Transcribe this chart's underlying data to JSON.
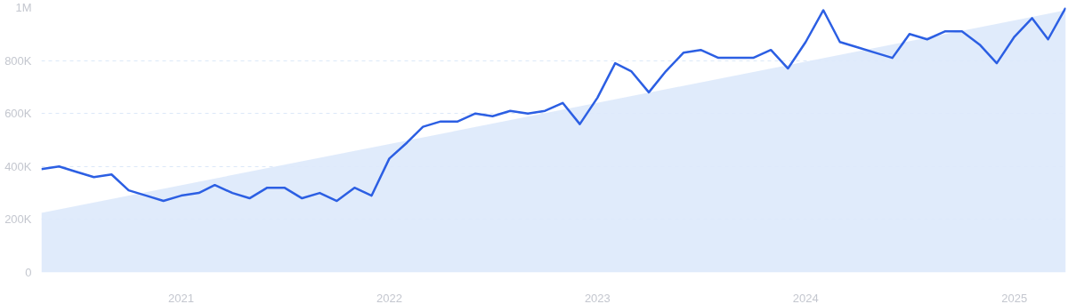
{
  "chart_data": {
    "type": "line",
    "x": [
      "2020-05",
      "2020-06",
      "2020-07",
      "2020-08",
      "2020-09",
      "2020-10",
      "2020-11",
      "2020-12",
      "2021-01",
      "2021-02",
      "2021-03",
      "2021-04",
      "2021-05",
      "2021-06",
      "2021-07",
      "2021-08",
      "2021-09",
      "2021-10",
      "2021-11",
      "2021-12",
      "2022-01",
      "2022-02",
      "2022-03",
      "2022-04",
      "2022-05",
      "2022-06",
      "2022-07",
      "2022-08",
      "2022-09",
      "2022-10",
      "2022-11",
      "2022-12",
      "2023-01",
      "2023-02",
      "2023-03",
      "2023-04",
      "2023-05",
      "2023-06",
      "2023-07",
      "2023-08",
      "2023-09",
      "2023-10",
      "2023-11",
      "2023-12",
      "2024-01",
      "2024-02",
      "2024-03",
      "2024-04",
      "2024-05",
      "2024-06",
      "2024-07",
      "2024-08",
      "2024-09",
      "2024-10",
      "2024-11",
      "2024-12",
      "2025-01",
      "2025-02",
      "2025-03",
      "2025-04"
    ],
    "series": [
      {
        "type": "area",
        "color": "#dde9fb",
        "x": [
          "2020-05",
          "2025-04"
        ],
        "values": [
          225000,
          990000
        ]
      },
      {
        "color": "#2c5fe3",
        "values": [
          390000,
          400000,
          380000,
          360000,
          370000,
          310000,
          290000,
          270000,
          290000,
          300000,
          330000,
          300000,
          280000,
          320000,
          320000,
          280000,
          300000,
          270000,
          320000,
          290000,
          430000,
          490000,
          550000,
          570000,
          570000,
          600000,
          590000,
          610000,
          600000,
          610000,
          640000,
          560000,
          660000,
          790000,
          760000,
          680000,
          760000,
          830000,
          840000,
          810000,
          810000,
          810000,
          840000,
          770000,
          870000,
          990000,
          870000,
          850000,
          830000,
          810000,
          900000,
          880000,
          910000,
          910000,
          860000,
          790000,
          890000,
          960000,
          880000,
          1000000
        ]
      }
    ],
    "xlim": [
      "2020-05",
      "2025-04"
    ],
    "xticks": [
      {
        "value": "2021-01",
        "label": "2021"
      },
      {
        "value": "2022-01",
        "label": "2022"
      },
      {
        "value": "2023-01",
        "label": "2023"
      },
      {
        "value": "2024-01",
        "label": "2024"
      },
      {
        "value": "2025-01",
        "label": "2025"
      }
    ],
    "ylim": [
      0,
      1000000
    ],
    "yticks": [
      {
        "value": 0,
        "label": "0"
      },
      {
        "value": 200000,
        "label": "200K"
      },
      {
        "value": 400000,
        "label": "400K"
      },
      {
        "value": 600000,
        "label": "600K"
      },
      {
        "value": 800000,
        "label": "800K"
      },
      {
        "value": 1000000,
        "label": "1M"
      }
    ],
    "grid": "y",
    "marker": "none",
    "line_style": "solid"
  }
}
